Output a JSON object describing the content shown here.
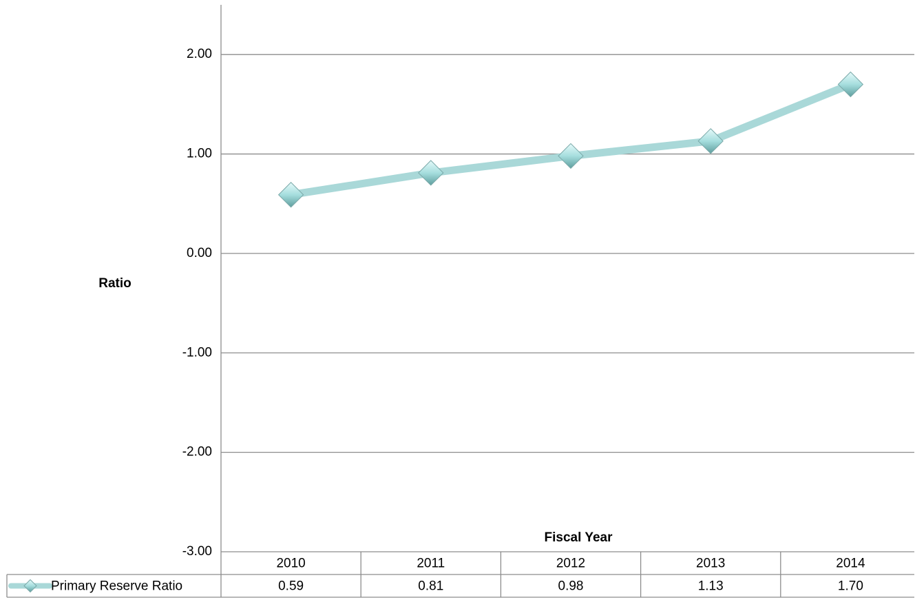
{
  "chart_data": {
    "type": "line",
    "x_label": "Fiscal Year",
    "y_label": "Ratio",
    "categories": [
      "2010",
      "2011",
      "2012",
      "2013",
      "2014"
    ],
    "series": [
      {
        "name": "Primary Reserve Ratio",
        "color": "#a9d8d8",
        "values": [
          0.59,
          0.81,
          0.98,
          1.13,
          1.7
        ],
        "value_labels": [
          "0.59",
          "0.81",
          "0.98",
          "1.13",
          "1.70"
        ]
      }
    ],
    "ylim": [
      -3,
      2.5
    ],
    "yticks": [
      {
        "value": -3,
        "label": "-3.00"
      },
      {
        "value": -2,
        "label": "-2.00"
      },
      {
        "value": -1,
        "label": "-1.00"
      },
      {
        "value": 0,
        "label": "0.00"
      },
      {
        "value": 1,
        "label": "1.00"
      },
      {
        "value": 2,
        "label": "2.00"
      }
    ],
    "grid": true
  }
}
